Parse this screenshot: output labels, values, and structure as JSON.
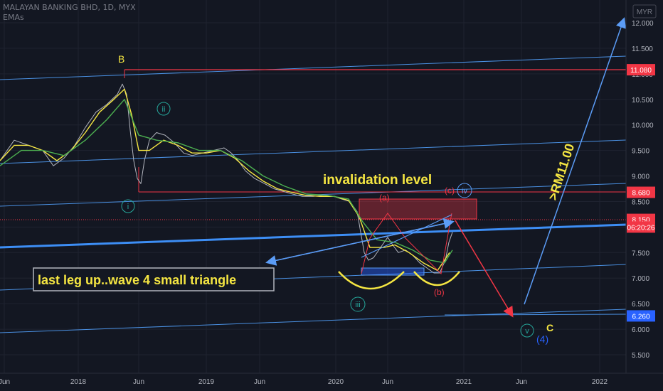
{
  "header": {
    "title": "MALAYAN BANKING BHD, 1D, MYX",
    "indicator": "EMAs"
  },
  "currency_button": "MYR",
  "chart_data": {
    "type": "line",
    "title": "MALAYAN BANKING BHD, 1D, MYX",
    "y_ticks": [
      "12.000",
      "11.500",
      "11.000",
      "10.500",
      "10.000",
      "9.500",
      "9.000",
      "8.500",
      "8.000",
      "7.500",
      "7.000",
      "6.500",
      "6.000",
      "5.500"
    ],
    "x_ticks": [
      "Jun",
      "2018",
      "Jun",
      "2019",
      "Jun",
      "2020",
      "Jun",
      "2021",
      "Jun",
      "2022"
    ],
    "ylim": [
      5.1,
      12.3
    ],
    "price_labels": [
      {
        "text": "11.080",
        "value": 11.08,
        "color": "#f23645"
      },
      {
        "text": "8.680",
        "value": 8.68,
        "color": "#f23645"
      },
      {
        "text": "8.150",
        "value": 8.15,
        "color": "#f23645"
      },
      {
        "text": "06:20:26",
        "value": 8.0,
        "color": "#f23645"
      },
      {
        "text": "6.260",
        "value": 6.26,
        "color": "#2962ff"
      }
    ],
    "series": [
      {
        "name": "",
        "color": "#b2b5be",
        "points": [
          [
            0,
            9.3
          ],
          [
            20,
            9.7
          ],
          [
            40,
            9.6
          ],
          [
            60,
            9.5
          ],
          [
            75,
            9.2
          ],
          [
            90,
            9.35
          ],
          [
            105,
            9.6
          ],
          [
            120,
            9.95
          ],
          [
            135,
            10.25
          ],
          [
            150,
            10.4
          ],
          [
            165,
            10.6
          ],
          [
            172,
            10.8
          ],
          [
            178,
            10.6
          ],
          [
            183,
            9.9
          ],
          [
            188,
            9.3
          ],
          [
            193,
            8.95
          ],
          [
            198,
            8.85
          ],
          [
            203,
            9.3
          ],
          [
            210,
            9.7
          ],
          [
            220,
            9.85
          ],
          [
            232,
            9.8
          ],
          [
            245,
            9.65
          ],
          [
            258,
            9.45
          ],
          [
            270,
            9.4
          ],
          [
            285,
            9.45
          ],
          [
            300,
            9.5
          ],
          [
            315,
            9.55
          ],
          [
            325,
            9.45
          ],
          [
            335,
            9.3
          ],
          [
            345,
            9.1
          ],
          [
            358,
            8.95
          ],
          [
            372,
            8.85
          ],
          [
            385,
            8.75
          ],
          [
            398,
            8.7
          ],
          [
            410,
            8.65
          ],
          [
            425,
            8.6
          ],
          [
            440,
            8.6
          ],
          [
            455,
            8.62
          ],
          [
            470,
            8.6
          ],
          [
            480,
            8.55
          ],
          [
            492,
            8.5
          ],
          [
            502,
            8.3
          ],
          [
            507,
            7.9
          ],
          [
            512,
            7.5
          ],
          [
            518,
            7.35
          ],
          [
            525,
            7.4
          ],
          [
            535,
            7.6
          ],
          [
            545,
            7.8
          ],
          [
            552,
            7.65
          ],
          [
            560,
            7.5
          ],
          [
            570,
            7.55
          ],
          [
            580,
            7.45
          ],
          [
            590,
            7.3
          ],
          [
            600,
            7.2
          ],
          [
            610,
            7.1
          ],
          [
            618,
            7.1
          ],
          [
            626,
            7.35
          ],
          [
            631,
            7.7
          ],
          [
            636,
            7.9
          ]
        ]
      },
      {
        "name": "",
        "color": "#f5e642",
        "points": [
          [
            0,
            9.3
          ],
          [
            20,
            9.6
          ],
          [
            40,
            9.6
          ],
          [
            60,
            9.5
          ],
          [
            80,
            9.3
          ],
          [
            100,
            9.5
          ],
          [
            120,
            9.85
          ],
          [
            140,
            10.25
          ],
          [
            160,
            10.5
          ],
          [
            175,
            10.7
          ],
          [
            185,
            10.2
          ],
          [
            195,
            9.5
          ],
          [
            210,
            9.5
          ],
          [
            230,
            9.7
          ],
          [
            250,
            9.6
          ],
          [
            270,
            9.45
          ],
          [
            290,
            9.45
          ],
          [
            310,
            9.5
          ],
          [
            330,
            9.35
          ],
          [
            350,
            9.1
          ],
          [
            370,
            8.9
          ],
          [
            390,
            8.75
          ],
          [
            410,
            8.68
          ],
          [
            430,
            8.62
          ],
          [
            450,
            8.6
          ],
          [
            470,
            8.6
          ],
          [
            490,
            8.52
          ],
          [
            505,
            8.2
          ],
          [
            520,
            7.6
          ],
          [
            540,
            7.6
          ],
          [
            555,
            7.65
          ],
          [
            575,
            7.5
          ],
          [
            595,
            7.3
          ],
          [
            615,
            7.15
          ],
          [
            632,
            7.5
          ]
        ]
      },
      {
        "name": "",
        "color": "#4caf50",
        "points": [
          [
            0,
            9.2
          ],
          [
            30,
            9.5
          ],
          [
            60,
            9.5
          ],
          [
            90,
            9.4
          ],
          [
            120,
            9.7
          ],
          [
            150,
            10.1
          ],
          [
            175,
            10.5
          ],
          [
            195,
            9.8
          ],
          [
            220,
            9.7
          ],
          [
            250,
            9.65
          ],
          [
            280,
            9.5
          ],
          [
            310,
            9.5
          ],
          [
            340,
            9.3
          ],
          [
            370,
            9.0
          ],
          [
            400,
            8.8
          ],
          [
            430,
            8.65
          ],
          [
            460,
            8.62
          ],
          [
            490,
            8.55
          ],
          [
            510,
            8.1
          ],
          [
            530,
            7.75
          ],
          [
            555,
            7.7
          ],
          [
            580,
            7.55
          ],
          [
            605,
            7.35
          ],
          [
            625,
            7.3
          ],
          [
            636,
            7.55
          ]
        ]
      }
    ],
    "annotations": {
      "wave_B": "B",
      "wave_ii": "ii",
      "wave_i": "i",
      "wave_iii": "iii",
      "wave_iv": "iv",
      "wave_v": "v",
      "wave_C": "C",
      "wave_4": "(4)",
      "wave_a": "(a)",
      "wave_b": "(b)",
      "wave_c": "(c)",
      "invalidation": "invalidation level",
      "target": ">RM11.00",
      "note": "last leg up..wave 4 small triangle"
    }
  }
}
